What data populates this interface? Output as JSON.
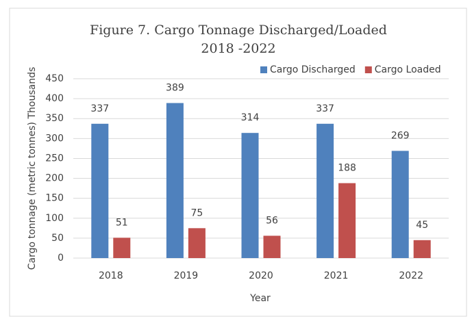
{
  "chart_data": {
    "type": "bar",
    "title": "Figure 7. Cargo Tonnage Discharged/Loaded",
    "subtitle": "2018 -2022",
    "x_label": "Year",
    "y_label": "Cargo tonnage  (metric tonnes) Thousands",
    "categories": [
      "2018",
      "2019",
      "2020",
      "2021",
      "2022"
    ],
    "series": [
      {
        "name": "Cargo Discharged",
        "color": "#4f81bd",
        "values": [
          337,
          389,
          314,
          337,
          269
        ]
      },
      {
        "name": "Cargo Loaded",
        "color": "#c0504d",
        "values": [
          51,
          75,
          56,
          188,
          45
        ]
      }
    ],
    "ylim": [
      0,
      450
    ],
    "yticks": [
      0,
      50,
      100,
      150,
      200,
      250,
      300,
      350,
      400,
      450
    ],
    "grid": true,
    "legend": "top-right"
  }
}
